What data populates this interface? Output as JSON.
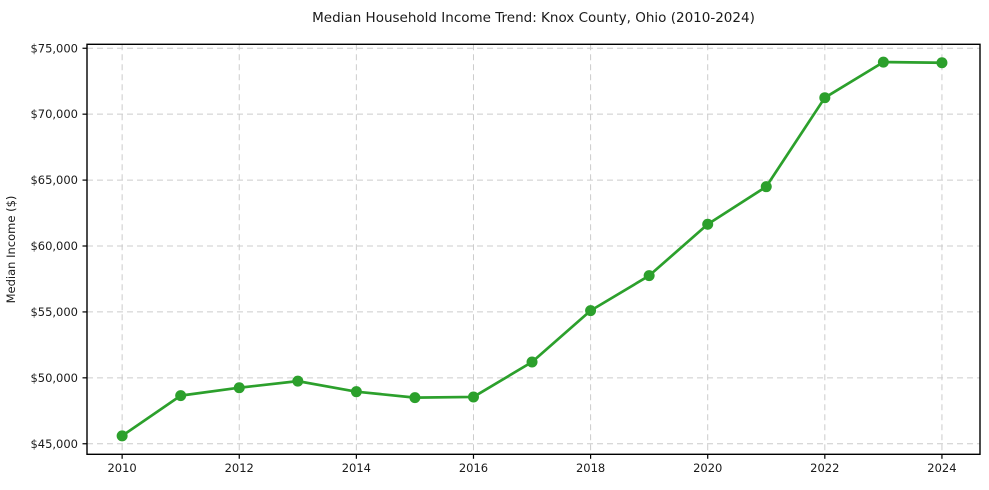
{
  "chart_data": {
    "type": "line",
    "title": "Median Household Income Trend: Knox County, Ohio (2010-2024)",
    "xlabel": "",
    "ylabel": "Median Income ($)",
    "series": [
      {
        "name": "Median Household Income",
        "x": [
          2010,
          2011,
          2012,
          2013,
          2014,
          2015,
          2016,
          2017,
          2018,
          2019,
          2020,
          2021,
          2022,
          2023,
          2024
        ],
        "values": [
          45600,
          48650,
          49250,
          49750,
          48950,
          48500,
          48550,
          51200,
          55100,
          57750,
          61650,
          64500,
          71250,
          73950,
          73900
        ]
      }
    ],
    "xlim": [
      2009.4,
      2024.65
    ],
    "ylim": [
      44200,
      75300
    ],
    "xticks": [
      {
        "value": 2010,
        "label": "2010"
      },
      {
        "value": 2012,
        "label": "2012"
      },
      {
        "value": 2014,
        "label": "2014"
      },
      {
        "value": 2016,
        "label": "2016"
      },
      {
        "value": 2018,
        "label": "2018"
      },
      {
        "value": 2020,
        "label": "2020"
      },
      {
        "value": 2022,
        "label": "2022"
      },
      {
        "value": 2024,
        "label": "2024"
      }
    ],
    "yticks": [
      {
        "value": 45000,
        "label": "$45,000"
      },
      {
        "value": 50000,
        "label": "$50,000"
      },
      {
        "value": 55000,
        "label": "$55,000"
      },
      {
        "value": 60000,
        "label": "$60,000"
      },
      {
        "value": 65000,
        "label": "$65,000"
      },
      {
        "value": 70000,
        "label": "$70,000"
      },
      {
        "value": 75000,
        "label": "$75,000"
      }
    ],
    "grid": true,
    "legend": null,
    "colors": {
      "line": "#2ca02c",
      "marker": "#2ca02c",
      "grid": "#cccccc",
      "spine": "#000000",
      "text": "#1a1a1a",
      "background": "#ffffff"
    },
    "marker": "circle",
    "marker_radius": 5.5,
    "line_width": 2.7
  }
}
